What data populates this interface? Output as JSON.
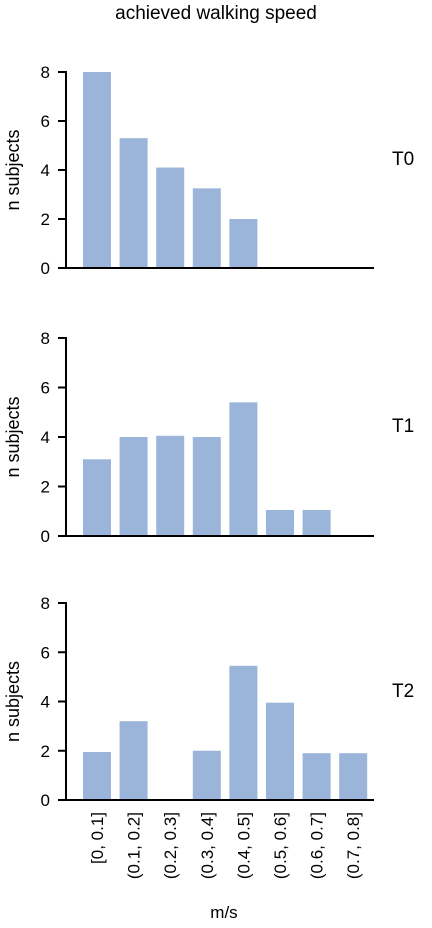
{
  "chart_data": {
    "type": "bar",
    "title": "achieved walking speed",
    "xlabel": "m/s",
    "ylabel": "n subjects",
    "ylim": [
      0,
      8
    ],
    "yticks": [
      0,
      2,
      4,
      6,
      8
    ],
    "categories": [
      "[0, 0.1]",
      "(0.1, 0.2]",
      "(0.2, 0.3]",
      "(0.3, 0.4]",
      "(0.4, 0.5]",
      "(0.5, 0.6]",
      "(0.6, 0.7]",
      "(0.7, 0.8]"
    ],
    "bar_color": "#9ab5d9",
    "series": [
      {
        "name": "T0",
        "values": [
          8,
          5.3,
          4.1,
          3.25,
          2,
          0,
          0,
          0
        ]
      },
      {
        "name": "T1",
        "values": [
          3.1,
          4.0,
          4.05,
          4.0,
          5.4,
          1.05,
          1.05,
          0
        ]
      },
      {
        "name": "T2",
        "values": [
          1.95,
          3.2,
          0,
          2.0,
          5.45,
          3.95,
          1.9,
          1.9
        ]
      }
    ]
  }
}
